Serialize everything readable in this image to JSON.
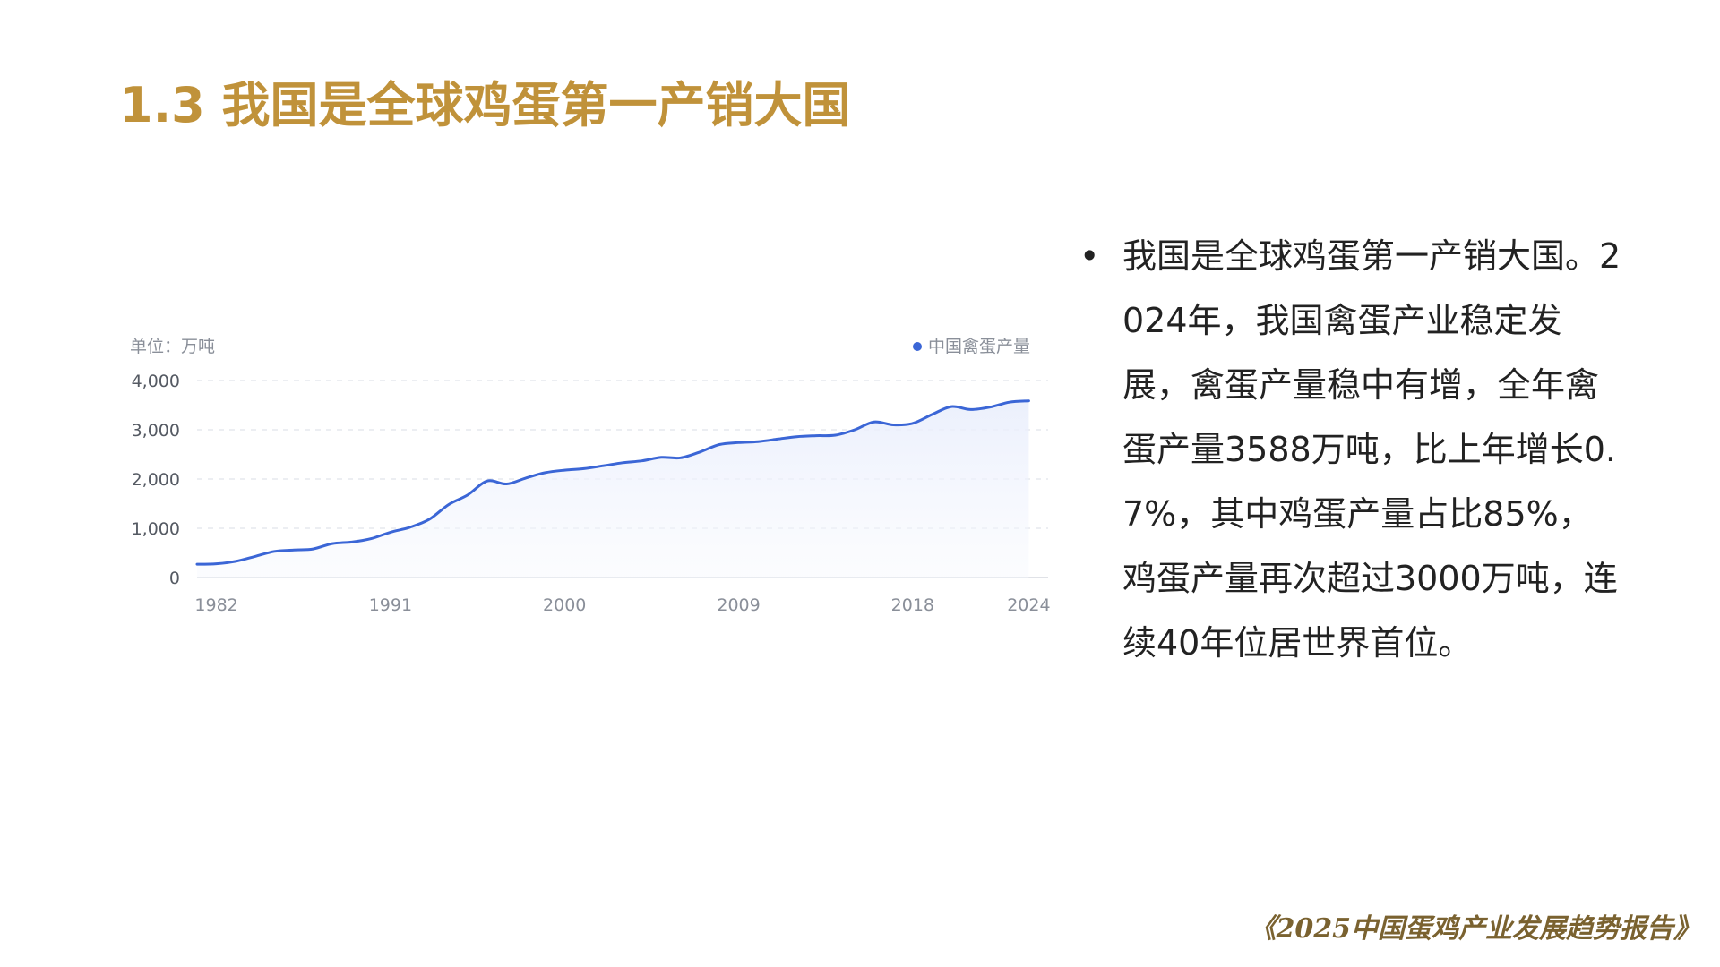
{
  "slide": {
    "title": "1.3 我国是全球鸡蛋第一产销大国",
    "bullet": "我国是全球鸡蛋第一产销大国。2024年，我国禽蛋产业稳定发展，禽蛋产量稳中有增，全年禽蛋产量3588万吨，比上年增长0.7%，其中鸡蛋产量占比85%，鸡蛋产量再次超过3000万吨，连续40年位居世界首位。",
    "footer": "《2025中国蛋鸡产业发展趋势报告》"
  },
  "colors": {
    "title": "#c0923a",
    "line": "#3b66d6",
    "area_top": "#e9eefc",
    "grid": "#e6e8ee",
    "axis_text": "#8a8f99"
  },
  "chart_data": {
    "type": "area",
    "unit_label": "单位：万吨",
    "legend": "中国禽蛋产量",
    "legend_position": "top-right",
    "xlim": [
      1981,
      2025
    ],
    "ylim": [
      0,
      4000
    ],
    "x_ticks": [
      1982,
      1991,
      2000,
      2009,
      2018,
      2024
    ],
    "y_ticks": [
      0,
      1000,
      2000,
      3000,
      4000
    ],
    "y_tick_labels": [
      "0",
      "1,000",
      "2,000",
      "3,000",
      "4,000"
    ],
    "grid": true,
    "series": [
      {
        "name": "中国禽蛋产量",
        "x": [
          1981,
          1982,
          1983,
          1984,
          1985,
          1986,
          1987,
          1988,
          1989,
          1990,
          1991,
          1992,
          1993,
          1994,
          1995,
          1996,
          1997,
          1998,
          1999,
          2000,
          2001,
          2002,
          2003,
          2004,
          2005,
          2006,
          2007,
          2008,
          2009,
          2010,
          2011,
          2012,
          2013,
          2014,
          2015,
          2016,
          2017,
          2018,
          2019,
          2020,
          2021,
          2022,
          2023,
          2024
        ],
        "values": [
          270,
          280,
          330,
          430,
          530,
          560,
          580,
          690,
          720,
          790,
          920,
          1020,
          1180,
          1480,
          1680,
          1960,
          1900,
          2020,
          2130,
          2180,
          2210,
          2270,
          2330,
          2370,
          2440,
          2430,
          2550,
          2700,
          2740,
          2760,
          2810,
          2860,
          2880,
          2890,
          3000,
          3160,
          3100,
          3130,
          3310,
          3470,
          3410,
          3460,
          3560,
          3588
        ]
      }
    ]
  }
}
